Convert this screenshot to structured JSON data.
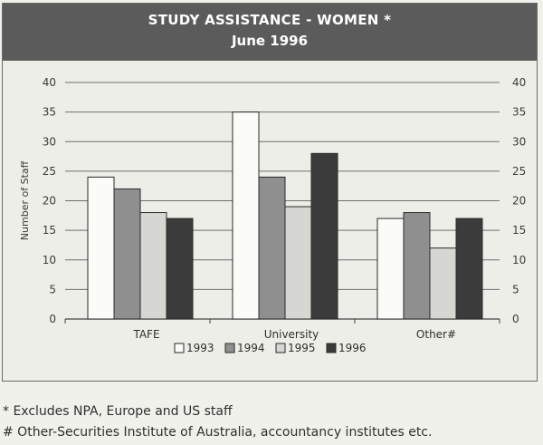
{
  "chart_data": {
    "type": "bar",
    "title": "STUDY ASSISTANCE - WOMEN *",
    "subtitle": "June 1996",
    "ylabel": "Number of Staff",
    "ylim": [
      0,
      40
    ],
    "yticks": [
      0,
      5,
      10,
      15,
      20,
      25,
      30,
      35,
      40
    ],
    "categories": [
      "TAFE",
      "University",
      "Other#"
    ],
    "series": [
      {
        "name": "1993",
        "values": [
          24,
          35,
          17
        ],
        "color": "#fbfbf7"
      },
      {
        "name": "1994",
        "values": [
          22,
          24,
          18
        ],
        "color": "#8f8f8f"
      },
      {
        "name": "1995",
        "values": [
          18,
          19,
          12
        ],
        "color": "#d6d6d2"
      },
      {
        "name": "1996",
        "values": [
          17,
          28,
          17
        ],
        "color": "#3b3b3b"
      }
    ],
    "grid": true,
    "legend_position": "bottom"
  },
  "footnotes": [
    "* Excludes NPA, Europe and US staff",
    "# Other-Securities Institute of Australia, accountancy institutes etc."
  ]
}
